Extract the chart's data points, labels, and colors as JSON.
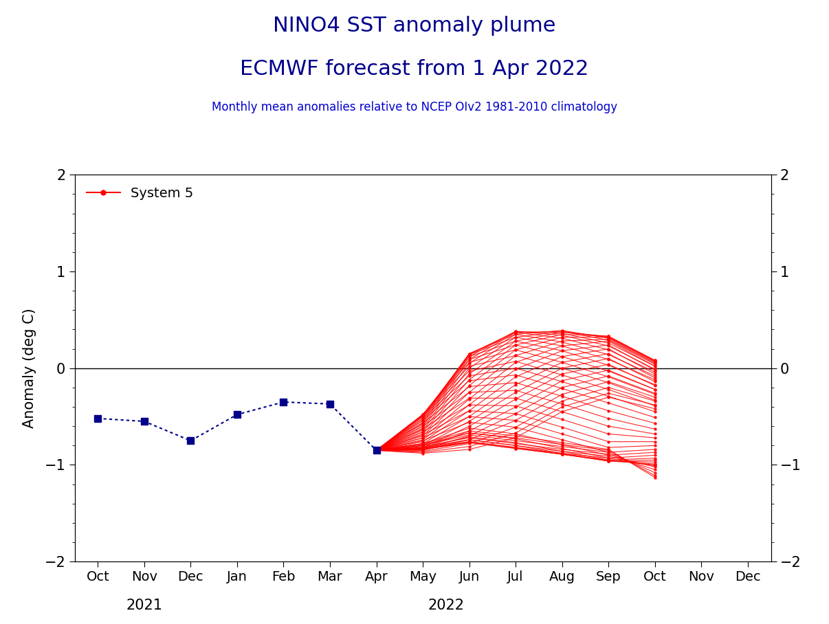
{
  "title_line1": "NINO4 SST anomaly plume",
  "title_line2": "ECMWF forecast from 1 Apr 2022",
  "subtitle": "Monthly mean anomalies relative to NCEP OIv2 1981-2010 climatology",
  "ylabel": "Anomaly (deg C)",
  "title_color": "#00008B",
  "subtitle_color": "#0000CD",
  "ylim": [
    -2,
    2
  ],
  "yticks": [
    -2,
    -1,
    0,
    1,
    2
  ],
  "x_months": [
    "Oct",
    "Nov",
    "Dec",
    "Jan",
    "Feb",
    "Mar",
    "Apr",
    "May",
    "Jun",
    "Jul",
    "Aug",
    "Sep",
    "Oct",
    "Nov",
    "Dec"
  ],
  "obs_x": [
    0,
    1,
    2,
    3,
    4,
    5,
    6
  ],
  "obs_y": [
    -0.52,
    -0.55,
    -0.75,
    -0.48,
    -0.35,
    -0.37,
    -0.85
  ],
  "obs_color": "#00008B",
  "ensemble_color": "#FF0000",
  "legend_label": "System 5",
  "ensemble_members": [
    [
      6,
      7,
      8,
      9,
      10,
      11,
      12
    ],
    [
      6,
      7,
      8,
      9,
      10,
      11,
      12
    ],
    [
      6,
      7,
      8,
      9,
      10,
      11,
      12
    ],
    [
      6,
      7,
      8,
      9,
      10,
      11,
      12
    ],
    [
      6,
      7,
      8,
      9,
      10,
      11,
      12
    ],
    [
      6,
      7,
      8,
      9,
      10,
      11,
      12
    ],
    [
      6,
      7,
      8,
      9,
      10,
      11,
      12
    ],
    [
      6,
      7,
      8,
      9,
      10,
      11,
      12
    ],
    [
      6,
      7,
      8,
      9,
      10,
      11,
      12
    ],
    [
      6,
      7,
      8,
      9,
      10,
      11,
      12
    ],
    [
      6,
      7,
      8,
      9,
      10,
      11,
      12
    ],
    [
      6,
      7,
      8,
      9,
      10,
      11,
      12
    ],
    [
      6,
      7,
      8,
      9,
      10,
      11,
      12
    ],
    [
      6,
      7,
      8,
      9,
      10,
      11,
      12
    ],
    [
      6,
      7,
      8,
      9,
      10,
      11,
      12
    ],
    [
      6,
      7,
      8,
      9,
      10,
      11,
      12
    ],
    [
      6,
      7,
      8,
      9,
      10,
      11,
      12
    ],
    [
      6,
      7,
      8,
      9,
      10,
      11,
      12
    ],
    [
      6,
      7,
      8,
      9,
      10,
      11,
      12
    ],
    [
      6,
      7,
      8,
      9,
      10,
      11,
      12
    ],
    [
      6,
      7,
      8,
      9,
      10,
      11,
      12
    ],
    [
      6,
      7,
      8,
      9,
      10,
      11,
      12
    ],
    [
      6,
      7,
      8,
      9,
      10,
      11,
      12
    ],
    [
      6,
      7,
      8,
      9,
      10,
      11,
      12
    ],
    [
      6,
      7,
      8,
      9,
      10,
      11,
      12
    ],
    [
      6,
      7,
      8,
      9,
      10,
      11,
      12
    ],
    [
      6,
      7,
      8,
      9,
      10,
      11,
      12
    ],
    [
      6,
      7,
      8,
      9,
      10,
      11,
      12
    ],
    [
      6,
      7,
      8,
      9,
      10,
      11,
      12
    ],
    [
      6,
      7,
      8,
      9,
      10,
      11,
      12
    ],
    [
      6,
      7,
      8,
      9,
      10,
      11,
      12
    ],
    [
      6,
      7,
      8,
      9,
      10,
      11,
      12
    ],
    [
      6,
      7,
      8,
      9,
      10,
      11,
      12
    ],
    [
      6,
      7,
      8,
      9,
      10,
      11,
      12
    ],
    [
      6,
      7,
      8,
      9,
      10,
      11,
      12
    ],
    [
      6,
      7,
      8,
      9,
      10,
      11,
      12
    ],
    [
      6,
      7,
      8,
      9,
      10,
      11,
      12
    ],
    [
      6,
      7,
      8,
      9,
      10,
      11,
      12
    ],
    [
      6,
      7,
      8,
      9,
      10,
      11,
      12
    ],
    [
      6,
      7,
      8,
      9,
      10,
      11,
      12
    ],
    [
      6,
      7,
      8,
      9,
      10,
      11,
      12
    ],
    [
      6,
      7,
      8,
      9,
      10,
      11,
      12
    ],
    [
      6,
      7,
      8,
      9,
      10,
      11,
      12
    ],
    [
      6,
      7,
      8,
      9,
      10,
      11,
      12
    ],
    [
      6,
      7,
      8,
      9,
      10,
      11,
      12
    ],
    [
      6,
      7,
      8,
      9,
      10,
      11,
      12
    ],
    [
      6,
      7,
      8,
      9,
      10,
      11,
      12
    ],
    [
      6,
      7,
      8,
      9,
      10,
      11,
      12
    ],
    [
      6,
      7,
      8,
      9,
      10,
      11,
      12
    ],
    [
      6,
      7,
      8,
      9,
      10,
      11,
      12
    ],
    [
      6,
      7,
      8,
      9,
      10,
      11,
      12
    ]
  ],
  "ensemble_values": [
    [
      -0.85,
      -0.88,
      -0.84,
      -0.72,
      -0.45,
      -0.3,
      -0.42
    ],
    [
      -0.85,
      -0.87,
      -0.81,
      -0.67,
      -0.4,
      -0.26,
      -0.38
    ],
    [
      -0.85,
      -0.86,
      -0.78,
      -0.61,
      -0.34,
      -0.2,
      -0.34
    ],
    [
      -0.85,
      -0.85,
      -0.74,
      -0.54,
      -0.27,
      -0.14,
      -0.3
    ],
    [
      -0.85,
      -0.84,
      -0.7,
      -0.47,
      -0.2,
      -0.08,
      -0.26
    ],
    [
      -0.85,
      -0.83,
      -0.65,
      -0.4,
      -0.13,
      -0.02,
      -0.22
    ],
    [
      -0.85,
      -0.82,
      -0.6,
      -0.32,
      -0.06,
      0.04,
      -0.18
    ],
    [
      -0.85,
      -0.8,
      -0.55,
      -0.25,
      0.0,
      0.1,
      -0.14
    ],
    [
      -0.85,
      -0.78,
      -0.5,
      -0.17,
      0.06,
      0.15,
      -0.1
    ],
    [
      -0.85,
      -0.76,
      -0.44,
      -0.09,
      0.12,
      0.2,
      -0.06
    ],
    [
      -0.85,
      -0.74,
      -0.38,
      -0.01,
      0.18,
      0.24,
      -0.02
    ],
    [
      -0.85,
      -0.72,
      -0.32,
      0.06,
      0.23,
      0.28,
      0.02
    ],
    [
      -0.85,
      -0.7,
      -0.25,
      0.13,
      0.28,
      0.3,
      0.05
    ],
    [
      -0.85,
      -0.68,
      -0.18,
      0.19,
      0.32,
      0.32,
      0.07
    ],
    [
      -0.85,
      -0.66,
      -0.12,
      0.24,
      0.35,
      0.33,
      0.08
    ],
    [
      -0.85,
      -0.64,
      -0.06,
      0.28,
      0.37,
      0.33,
      0.08
    ],
    [
      -0.85,
      -0.62,
      0.0,
      0.32,
      0.38,
      0.32,
      0.07
    ],
    [
      -0.85,
      -0.6,
      0.05,
      0.35,
      0.39,
      0.31,
      0.06
    ],
    [
      -0.85,
      -0.58,
      0.09,
      0.37,
      0.38,
      0.29,
      0.04
    ],
    [
      -0.85,
      -0.56,
      0.12,
      0.38,
      0.36,
      0.26,
      0.02
    ],
    [
      -0.85,
      -0.54,
      0.14,
      0.38,
      0.34,
      0.23,
      -0.01
    ],
    [
      -0.85,
      -0.52,
      0.15,
      0.37,
      0.31,
      0.19,
      -0.04
    ],
    [
      -0.85,
      -0.5,
      0.15,
      0.35,
      0.27,
      0.14,
      -0.08
    ],
    [
      -0.85,
      -0.49,
      0.14,
      0.32,
      0.23,
      0.09,
      -0.12
    ],
    [
      -0.85,
      -0.48,
      0.12,
      0.28,
      0.18,
      0.03,
      -0.17
    ],
    [
      -0.85,
      -0.48,
      0.09,
      0.24,
      0.12,
      -0.03,
      -0.22
    ],
    [
      -0.85,
      -0.48,
      0.06,
      0.19,
      0.06,
      -0.09,
      -0.27
    ],
    [
      -0.85,
      -0.49,
      0.02,
      0.13,
      0.0,
      -0.15,
      -0.33
    ],
    [
      -0.85,
      -0.5,
      -0.03,
      0.07,
      -0.07,
      -0.22,
      -0.39
    ],
    [
      -0.85,
      -0.52,
      -0.08,
      0.0,
      -0.14,
      -0.29,
      -0.45
    ],
    [
      -0.85,
      -0.54,
      -0.13,
      -0.07,
      -0.21,
      -0.36,
      -0.51
    ],
    [
      -0.85,
      -0.57,
      -0.19,
      -0.15,
      -0.29,
      -0.44,
      -0.57
    ],
    [
      -0.85,
      -0.6,
      -0.25,
      -0.23,
      -0.37,
      -0.52,
      -0.63
    ],
    [
      -0.85,
      -0.63,
      -0.31,
      -0.31,
      -0.45,
      -0.6,
      -0.68
    ],
    [
      -0.85,
      -0.66,
      -0.38,
      -0.39,
      -0.53,
      -0.68,
      -0.72
    ],
    [
      -0.85,
      -0.69,
      -0.44,
      -0.47,
      -0.61,
      -0.76,
      -0.76
    ],
    [
      -0.85,
      -0.72,
      -0.5,
      -0.54,
      -0.68,
      -0.82,
      -0.8
    ],
    [
      -0.85,
      -0.75,
      -0.56,
      -0.61,
      -0.74,
      -0.87,
      -0.84
    ],
    [
      -0.85,
      -0.78,
      -0.62,
      -0.68,
      -0.79,
      -0.9,
      -0.87
    ],
    [
      -0.85,
      -0.8,
      -0.67,
      -0.73,
      -0.83,
      -0.93,
      -0.9
    ],
    [
      -0.85,
      -0.82,
      -0.71,
      -0.77,
      -0.86,
      -0.95,
      -0.93
    ],
    [
      -0.85,
      -0.83,
      -0.74,
      -0.8,
      -0.88,
      -0.96,
      -0.95
    ],
    [
      -0.85,
      -0.84,
      -0.76,
      -0.82,
      -0.89,
      -0.96,
      -0.97
    ],
    [
      -0.85,
      -0.84,
      -0.77,
      -0.83,
      -0.89,
      -0.96,
      -0.99
    ],
    [
      -0.85,
      -0.84,
      -0.77,
      -0.83,
      -0.89,
      -0.95,
      -1.0
    ],
    [
      -0.85,
      -0.83,
      -0.76,
      -0.82,
      -0.88,
      -0.93,
      -1.01
    ],
    [
      -0.85,
      -0.82,
      -0.74,
      -0.8,
      -0.86,
      -0.91,
      -1.02
    ],
    [
      -0.85,
      -0.81,
      -0.72,
      -0.78,
      -0.84,
      -0.89,
      -1.05
    ],
    [
      -0.85,
      -0.8,
      -0.69,
      -0.75,
      -0.81,
      -0.87,
      -1.08
    ],
    [
      -0.85,
      -0.79,
      -0.67,
      -0.72,
      -0.79,
      -0.85,
      -1.11
    ],
    [
      -0.85,
      -0.78,
      -0.65,
      -0.7,
      -0.77,
      -0.84,
      -1.13
    ]
  ]
}
